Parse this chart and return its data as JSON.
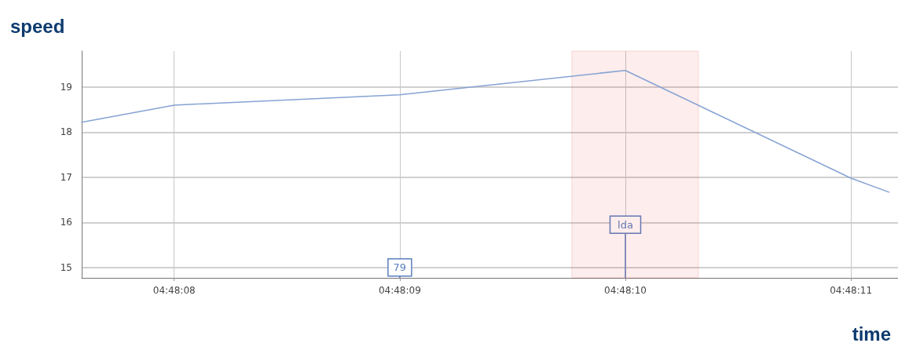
{
  "chart_data": {
    "type": "line",
    "title": "speed",
    "xlabel": "time",
    "series": [
      {
        "color": "#86a3d4",
        "x": [
          4.802108,
          4.802222,
          4.8025,
          4.802778,
          4.803056,
          4.803103
        ],
        "values": [
          18.22,
          18.6,
          18.83,
          19.37,
          16.98,
          16.67
        ]
      }
    ],
    "xlim": [
      4.802108,
      4.803114
    ],
    "xticks": [
      {
        "value": 4.802222,
        "label": "04:48:08"
      },
      {
        "value": 4.8025,
        "label": "04:48:09"
      },
      {
        "value": 4.802778,
        "label": "04:48:10"
      },
      {
        "value": 4.803056,
        "label": "04:48:11"
      }
    ],
    "ylim": [
      14.77,
      19.8
    ],
    "yticks": [
      15,
      16,
      17,
      18,
      19
    ],
    "bands": [
      {
        "axis": "x",
        "from": 4.802712,
        "to": 4.802868,
        "color": "#e8141b"
      }
    ],
    "annotations": [
      {
        "text": "79",
        "x": 4.8025,
        "y": 15
      },
      {
        "text": "lda",
        "x": 4.802778,
        "y": 15.95
      }
    ],
    "grid": true,
    "marker": "none",
    "line_style": "solid"
  }
}
